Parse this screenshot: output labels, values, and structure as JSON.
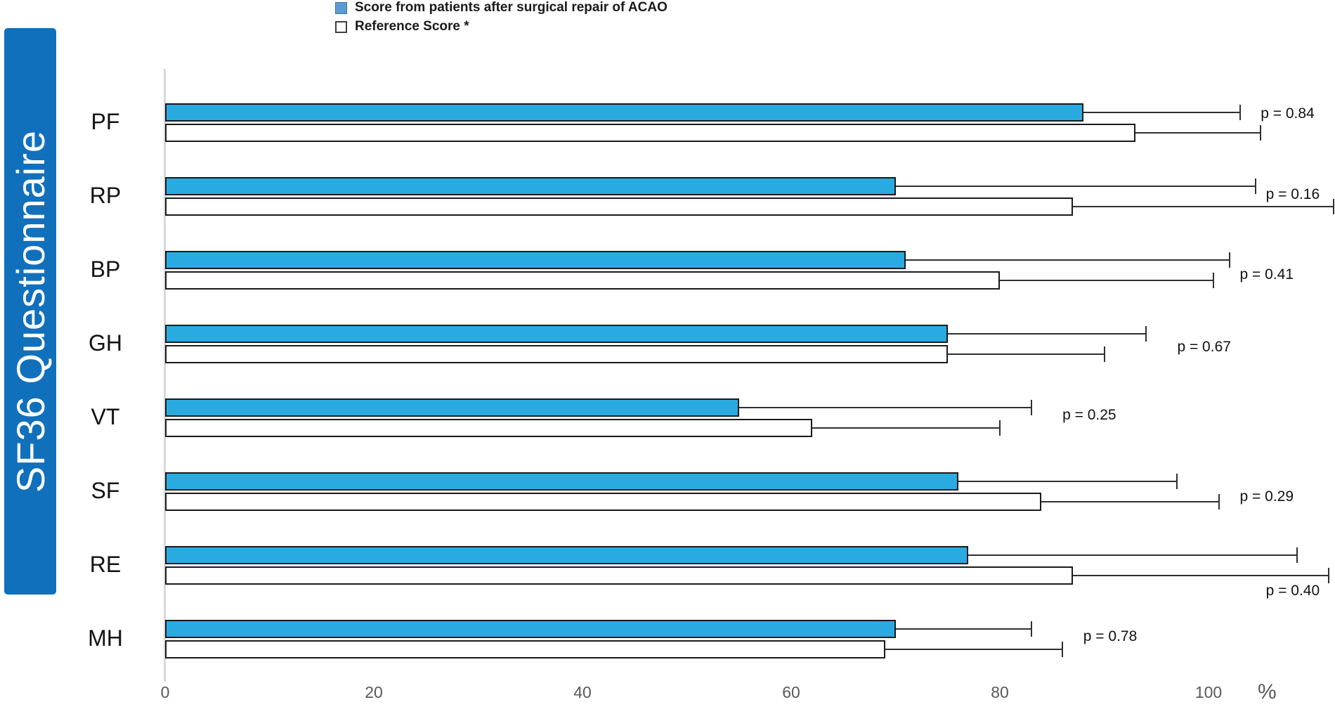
{
  "banner": {
    "title": "SF36 Questionnaire"
  },
  "legend": [
    {
      "label": "Score from patients after surgical repair of ACAO",
      "swatch": "blue"
    },
    {
      "label": "Reference Score *",
      "swatch": "white"
    }
  ],
  "axis": {
    "ticks": [
      "0",
      "20",
      "40",
      "60",
      "80",
      "100"
    ],
    "unit_label": "%"
  },
  "colors": {
    "bar_blue": "#29ABE2",
    "legend_swatch_blue": "#5B9BD5",
    "banner_blue": "#1170BB",
    "bar_border": "#1A1A1A",
    "axis_line": "#D9D9D9",
    "tick_text": "#595959"
  },
  "chart_data": {
    "type": "bar",
    "orientation": "horizontal",
    "title": "SF36 Questionnaire",
    "xlabel": "%",
    "xlim": [
      0,
      113
    ],
    "grid": false,
    "legend_position": "top-center",
    "categories": [
      "PF",
      "RP",
      "BP",
      "GH",
      "VT",
      "SF",
      "RE",
      "MH"
    ],
    "series": [
      {
        "name": "Score from patients after surgical repair of ACAO",
        "color": "#29ABE2",
        "values": [
          88,
          70,
          71,
          75,
          55,
          76,
          77,
          70
        ],
        "error_high": [
          103,
          104.5,
          102,
          94,
          83,
          97,
          108.5,
          83
        ]
      },
      {
        "name": "Reference Score *",
        "color": "#FFFFFF",
        "values": [
          93,
          87,
          80,
          75,
          62,
          84,
          87,
          69
        ],
        "error_high": [
          105,
          112,
          100.5,
          90,
          80,
          101,
          111.5,
          86
        ]
      }
    ],
    "p_values": [
      "p = 0.84",
      "p = 0.16",
      "p = 0.41",
      "p = 0.67",
      "p = 0.25",
      "p = 0.29",
      "p = 0.40",
      "p = 0.78"
    ],
    "p_label_pos": [
      {
        "x": 105,
        "dy": 14
      },
      {
        "x": 105.5,
        "dy": 24
      },
      {
        "x": 103,
        "dy": 33
      },
      {
        "x": 97,
        "dy": 31
      },
      {
        "x": 86,
        "dy": 23
      },
      {
        "x": 103,
        "dy": 34
      },
      {
        "x": 105.5,
        "dy": 63
      },
      {
        "x": 88,
        "dy": 23
      }
    ]
  }
}
